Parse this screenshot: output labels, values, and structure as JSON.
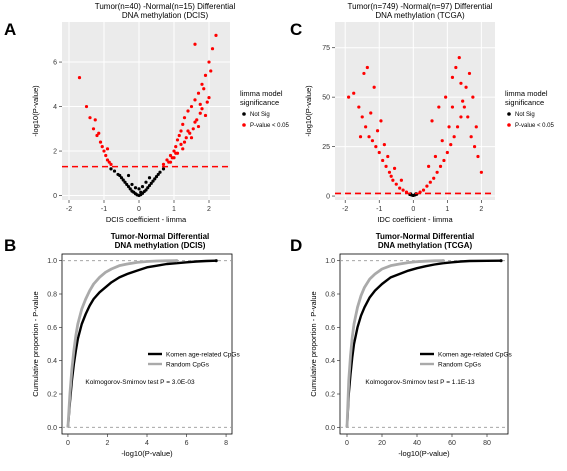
{
  "panels": {
    "A": "A",
    "B": "B",
    "C": "C",
    "D": "D"
  },
  "chart_data": [
    {
      "panel": "A",
      "type": "scatter",
      "title": "Tumor(n=40) -Normal(n=15) Differential",
      "subtitle": "DNA methylation (DCIS)",
      "xlabel": "DCIS coefficient - limma",
      "ylabel": "-log10(P-value)",
      "xlim": [
        -2.2,
        2.6
      ],
      "ylim": [
        -0.2,
        7.8
      ],
      "xticks": [
        -2,
        -1,
        0,
        1,
        2
      ],
      "yticks": [
        0,
        2,
        4,
        6
      ],
      "threshold_y": 1.3,
      "grid": true,
      "legend": {
        "title_lines": [
          "limma model",
          "significance"
        ],
        "entries": [
          {
            "label": "Not Sig",
            "color": "#000000"
          },
          {
            "label": "P-value < 0.05",
            "color": "#ff0000"
          }
        ],
        "placement": "right"
      },
      "series": [
        {
          "name": "Not Sig",
          "color": "#000000",
          "x": [
            -0.8,
            -0.7,
            -0.6,
            -0.55,
            -0.5,
            -0.45,
            -0.4,
            -0.35,
            -0.3,
            -0.25,
            -0.2,
            -0.15,
            -0.1,
            -0.05,
            0.0,
            0.05,
            0.1,
            0.15,
            0.2,
            0.25,
            0.3,
            0.35,
            0.4,
            0.45,
            0.5,
            0.55,
            0.6,
            0.7,
            0.2,
            -0.2,
            0.0,
            0.1,
            -0.1,
            0.3,
            -0.3,
            0.05
          ],
          "y": [
            1.2,
            1.1,
            0.95,
            0.9,
            0.8,
            0.7,
            0.6,
            0.5,
            0.4,
            0.3,
            0.2,
            0.15,
            0.08,
            0.03,
            0.0,
            0.04,
            0.1,
            0.18,
            0.25,
            0.35,
            0.45,
            0.55,
            0.65,
            0.75,
            0.85,
            0.95,
            1.05,
            1.2,
            0.6,
            0.5,
            0.3,
            0.4,
            0.35,
            0.8,
            0.9,
            0.15
          ]
        },
        {
          "name": "P-value < 0.05",
          "color": "#ff0000",
          "x": [
            -1.7,
            -1.5,
            -1.4,
            -1.3,
            -1.2,
            -1.1,
            -1.05,
            -1.0,
            -0.95,
            -0.9,
            -0.85,
            -0.8,
            -1.15,
            -1.25,
            -0.9,
            0.7,
            0.8,
            0.9,
            1.0,
            1.05,
            1.1,
            1.15,
            1.2,
            1.25,
            1.3,
            1.4,
            1.5,
            1.6,
            1.7,
            1.8,
            1.9,
            2.0,
            2.1,
            2.2,
            1.0,
            1.2,
            1.4,
            1.6,
            1.8,
            2.0,
            1.5,
            1.7,
            1.9,
            0.9,
            1.1,
            1.3,
            1.55,
            1.75,
            1.95,
            2.05,
            1.85,
            1.65,
            1.45,
            1.25,
            1.05,
            0.85,
            0.95,
            1.35,
            1.75,
            1.6
          ],
          "y": [
            5.3,
            4.0,
            3.5,
            3.0,
            2.7,
            2.4,
            2.2,
            2.0,
            1.8,
            1.6,
            1.5,
            1.4,
            2.8,
            3.4,
            2.1,
            1.4,
            1.6,
            1.8,
            2.0,
            2.2,
            2.5,
            2.7,
            2.9,
            3.2,
            3.5,
            3.8,
            4.0,
            4.3,
            4.6,
            5.0,
            5.4,
            6.0,
            6.6,
            7.2,
            1.7,
            2.3,
            2.9,
            3.3,
            3.9,
            4.4,
            2.6,
            3.1,
            3.6,
            1.5,
            1.9,
            2.4,
            3.0,
            3.7,
            4.2,
            5.6,
            4.8,
            3.4,
            2.8,
            2.1,
            1.9,
            1.5,
            1.7,
            2.6,
            4.1,
            6.8
          ]
        }
      ]
    },
    {
      "panel": "C",
      "type": "scatter",
      "title": "Tumor(n=749) -Normal(n=97) Differential",
      "subtitle": "DNA methylation (TCGA)",
      "xlabel": "IDC coefficient - limma",
      "ylabel": "-log10(P-value)",
      "xlim": [
        -2.3,
        2.4
      ],
      "ylim": [
        -2,
        88
      ],
      "xticks": [
        -2,
        -1,
        0,
        1,
        2
      ],
      "yticks": [
        0,
        25,
        50,
        75
      ],
      "threshold_y": 1.3,
      "grid": true,
      "legend": {
        "title_lines": [
          "limma model",
          "significance"
        ],
        "entries": [
          {
            "label": "Not Sig",
            "color": "#000000"
          },
          {
            "label": "P-value < 0.05",
            "color": "#ff0000"
          }
        ],
        "placement": "right"
      },
      "series": [
        {
          "name": "Not Sig",
          "color": "#000000",
          "x": [
            -0.1,
            -0.05,
            0.0,
            0.05,
            0.1,
            -0.08,
            0.08
          ],
          "y": [
            0.8,
            0.5,
            0.3,
            0.6,
            0.9,
            1.1,
            1.2
          ]
        },
        {
          "name": "P-value < 0.05",
          "color": "#ff0000",
          "x": [
            -1.9,
            -1.75,
            -1.6,
            -1.5,
            -1.4,
            -1.3,
            -1.2,
            -1.1,
            -1.0,
            -0.9,
            -0.8,
            -0.7,
            -0.6,
            -0.5,
            -0.4,
            -0.3,
            -0.2,
            -1.35,
            -1.15,
            -0.95,
            -0.75,
            -1.25,
            -1.05,
            -0.85,
            -1.45,
            -0.65,
            0.2,
            0.3,
            0.4,
            0.5,
            0.6,
            0.7,
            0.8,
            0.9,
            1.0,
            1.1,
            1.2,
            1.3,
            1.4,
            1.5,
            1.6,
            1.7,
            1.8,
            1.9,
            2.0,
            0.55,
            0.75,
            0.95,
            1.15,
            1.35,
            1.55,
            1.75,
            1.25,
            1.45,
            1.05,
            0.85,
            1.65,
            1.85,
            1.15,
            1.4,
            0.65,
            0.45,
            -0.55,
            -0.35,
            -1.55
          ],
          "y": [
            50,
            52,
            45,
            40,
            35,
            30,
            28,
            25,
            22,
            18,
            15,
            12,
            8,
            6,
            4,
            3,
            2,
            65,
            55,
            38,
            20,
            42,
            33,
            26,
            62,
            10,
            2,
            3,
            5,
            7,
            9,
            12,
            15,
            18,
            22,
            26,
            30,
            35,
            40,
            45,
            40,
            30,
            25,
            20,
            12,
            38,
            45,
            50,
            60,
            70,
            55,
            50,
            65,
            48,
            35,
            28,
            62,
            35,
            45,
            57,
            20,
            15,
            14,
            8,
            30
          ]
        }
      ]
    },
    {
      "panel": "B",
      "type": "line",
      "title": "Tumor-Normal Differential",
      "subtitle": "DNA methylation (DCIS)",
      "xlabel": "-log10(P-value)",
      "ylabel": "Cumulative proportion - P-value",
      "xlim": [
        -0.3,
        8.3
      ],
      "ylim": [
        -0.04,
        1.04
      ],
      "xticks": [
        0,
        2,
        4,
        6,
        8
      ],
      "yticks": [
        0.0,
        0.2,
        0.4,
        0.6,
        0.8,
        1.0
      ],
      "hlines": [
        0.0,
        1.0
      ],
      "legend": {
        "entries": [
          {
            "label": "Komen age-related CpGs",
            "color": "#000000"
          },
          {
            "label": "Random CpGs",
            "color": "#aaaaaa"
          }
        ],
        "placement": "bottom-right"
      },
      "annotation": "Kolmogorov-Smirnov test P = 3.0E-03",
      "series": [
        {
          "name": "Komen age-related CpGs",
          "color": "#000000",
          "x": [
            0,
            0.1,
            0.2,
            0.3,
            0.4,
            0.5,
            0.7,
            0.9,
            1.1,
            1.3,
            1.6,
            1.9,
            2.2,
            2.6,
            3.0,
            3.5,
            4.0,
            4.5,
            5.0,
            5.5,
            6.0,
            6.5,
            7.0,
            7.5
          ],
          "y": [
            0.0,
            0.15,
            0.28,
            0.38,
            0.46,
            0.53,
            0.62,
            0.68,
            0.73,
            0.77,
            0.81,
            0.84,
            0.87,
            0.9,
            0.92,
            0.94,
            0.96,
            0.97,
            0.98,
            0.985,
            0.99,
            0.995,
            0.998,
            1.0
          ]
        },
        {
          "name": "Random CpGs",
          "color": "#aaaaaa",
          "x": [
            0,
            0.1,
            0.2,
            0.3,
            0.4,
            0.5,
            0.7,
            0.9,
            1.1,
            1.3,
            1.6,
            1.9,
            2.2,
            2.6,
            3.0,
            3.5,
            4.0,
            4.5,
            5.0,
            5.5
          ],
          "y": [
            0.0,
            0.2,
            0.35,
            0.46,
            0.55,
            0.62,
            0.71,
            0.77,
            0.82,
            0.86,
            0.9,
            0.93,
            0.95,
            0.97,
            0.98,
            0.99,
            0.995,
            0.998,
            0.999,
            1.0
          ]
        }
      ]
    },
    {
      "panel": "D",
      "type": "line",
      "title": "Tumor-Normal Differential",
      "subtitle": "DNA methylation (TCGA)",
      "xlabel": "-log10(P-value)",
      "ylabel": "Cumulative proportion - P-value",
      "xlim": [
        -4,
        92
      ],
      "ylim": [
        -0.04,
        1.04
      ],
      "xticks": [
        0,
        20,
        40,
        60,
        80
      ],
      "yticks": [
        0.0,
        0.2,
        0.4,
        0.6,
        0.8,
        1.0
      ],
      "hlines": [
        0.0,
        1.0
      ],
      "legend": {
        "entries": [
          {
            "label": "Komen age-related CpGs",
            "color": "#000000"
          },
          {
            "label": "Random CpGs",
            "color": "#aaaaaa"
          }
        ],
        "placement": "bottom-right"
      },
      "annotation": "Kolmogorov-Smirnov test P = 1.1E-13",
      "series": [
        {
          "name": "Komen age-related CpGs",
          "color": "#000000",
          "x": [
            0,
            1,
            2,
            3,
            4,
            6,
            8,
            10,
            13,
            16,
            20,
            25,
            30,
            35,
            40,
            45,
            50,
            55,
            60,
            65,
            70,
            80,
            88
          ],
          "y": [
            0.0,
            0.2,
            0.32,
            0.42,
            0.5,
            0.6,
            0.67,
            0.72,
            0.78,
            0.82,
            0.86,
            0.9,
            0.92,
            0.94,
            0.955,
            0.967,
            0.977,
            0.985,
            0.99,
            0.995,
            0.998,
            0.999,
            1.0
          ]
        },
        {
          "name": "Random CpGs",
          "color": "#aaaaaa",
          "x": [
            0,
            1,
            2,
            3,
            4,
            6,
            8,
            10,
            13,
            16,
            20,
            25,
            30,
            35,
            40,
            45,
            50,
            55
          ],
          "y": [
            0.0,
            0.28,
            0.43,
            0.54,
            0.62,
            0.72,
            0.79,
            0.84,
            0.89,
            0.92,
            0.95,
            0.97,
            0.98,
            0.988,
            0.994,
            0.997,
            0.999,
            1.0
          ]
        }
      ]
    }
  ]
}
